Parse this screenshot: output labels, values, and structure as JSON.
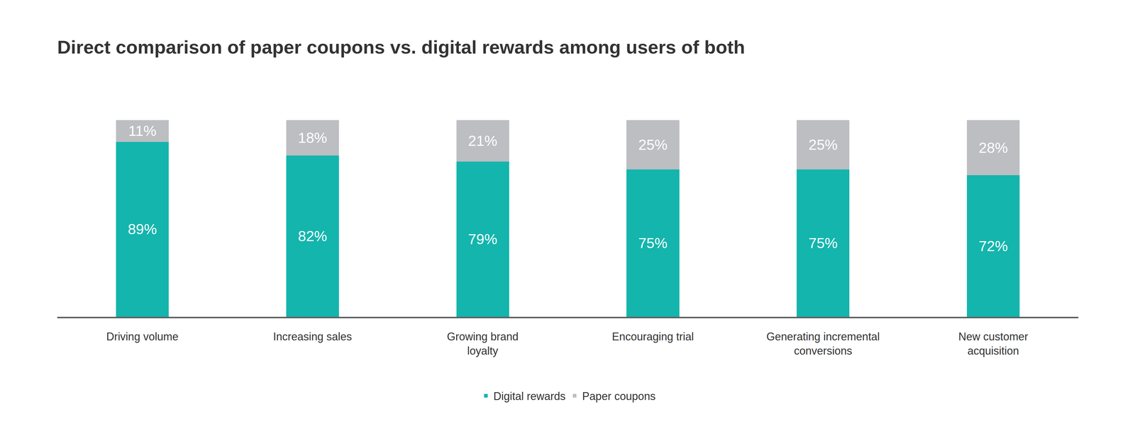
{
  "chart_data": {
    "type": "bar",
    "title": "Direct comparison of paper coupons vs. digital rewards among users of both",
    "categories": [
      "Driving volume",
      "Increasing sales",
      "Growing brand loyalty",
      "Encouraging trial",
      "Generating incremental conversions",
      "New customer acquisition"
    ],
    "series": [
      {
        "name": "Paper coupons",
        "color": "#bcbec2",
        "values": [
          11,
          18,
          21,
          25,
          25,
          28
        ],
        "value_labels": [
          "11%",
          "18%",
          "21%",
          "25%",
          "25%",
          "28%"
        ]
      },
      {
        "name": "Digital rewards",
        "color": "#14b5ad",
        "values": [
          89,
          82,
          79,
          75,
          75,
          72
        ],
        "value_labels": [
          "89%",
          "82%",
          "79%",
          "75%",
          "75%",
          "72%"
        ]
      }
    ],
    "stacked": true,
    "data_labels": true,
    "ylim": [
      0,
      100
    ],
    "grid": false,
    "legend": "bottom",
    "tick_labels": "x"
  }
}
